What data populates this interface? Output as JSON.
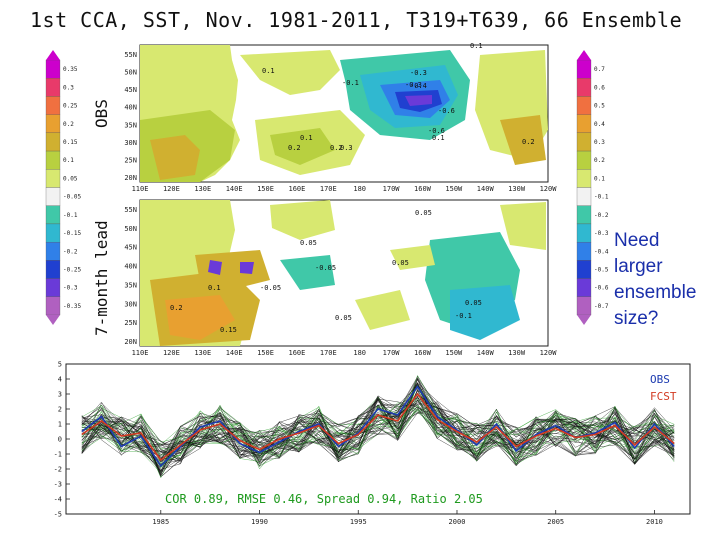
{
  "title": "1st CCA, SST, Nov. 1981-2011, T319+T639, 66 Ensemble",
  "label_obs": "OBS",
  "label_lead": "7-month lead",
  "note": [
    "Need",
    "larger",
    "ensemble",
    "size?"
  ],
  "colorbar_left": [
    "0.35",
    "0.3",
    "0.25",
    "0.2",
    "0.15",
    "0.1",
    "0.05",
    "-0.05",
    "-0.1",
    "-0.15",
    "-0.2",
    "-0.25",
    "-0.3",
    "-0.35"
  ],
  "colorbar_right": [
    "0.7",
    "0.6",
    "0.5",
    "0.4",
    "0.3",
    "0.2",
    "0.1",
    "-0.1",
    "-0.2",
    "-0.3",
    "-0.4",
    "-0.5",
    "-0.6",
    "-0.7"
  ],
  "colorbar_colors": [
    "#cc00cc",
    "#e83a6a",
    "#f07040",
    "#e8a030",
    "#d0b030",
    "#b8d040",
    "#d8e870",
    "#f2f2f2",
    "#40c8a8",
    "#30b8d0",
    "#3080e8",
    "#2040d0",
    "#6a3ad8",
    "#b060c0"
  ],
  "map_top": {
    "lat_labels": [
      "55N",
      "50N",
      "45N",
      "40N",
      "35N",
      "30N",
      "25N",
      "20N"
    ],
    "lon_labels": [
      "110E",
      "120E",
      "130E",
      "140E",
      "150E",
      "160E",
      "170E",
      "180",
      "170W",
      "160W",
      "150W",
      "140W",
      "130W",
      "120W"
    ],
    "contour_labels": [
      "0.1",
      "0.1",
      "0.2",
      "-0.1",
      "-0.3",
      "-0.3",
      "-0.4",
      "-0.6",
      "-0.6",
      "0.1",
      "0.1",
      "0.2",
      "0.3",
      "0.2"
    ]
  },
  "map_bottom": {
    "lat_labels": [
      "55N",
      "50N",
      "45N",
      "40N",
      "35N",
      "30N",
      "25N",
      "20N"
    ],
    "lon_labels": [
      "110E",
      "120E",
      "130E",
      "140E",
      "150E",
      "160E",
      "170E",
      "180",
      "170W",
      "160W",
      "150W",
      "140W",
      "130W",
      "120W"
    ],
    "contour_labels": [
      "0.05",
      "0.05",
      "0.05",
      "0.05",
      "-0.05",
      "0.15",
      "0.1",
      "-0.1",
      "0.05",
      "-0.05",
      "0.2"
    ]
  },
  "chart_data": {
    "type": "line",
    "x": [
      1981,
      1982,
      1983,
      1984,
      1985,
      1986,
      1987,
      1988,
      1989,
      1990,
      1991,
      1992,
      1993,
      1994,
      1995,
      1996,
      1997,
      1998,
      1999,
      2000,
      2001,
      2002,
      2003,
      2004,
      2005,
      2006,
      2007,
      2008,
      2009,
      2010,
      2011
    ],
    "x_ticks": [
      "1985",
      "1990",
      "1995",
      "2000",
      "2005",
      "2010"
    ],
    "y_ticks": [
      "5",
      "4",
      "3",
      "2",
      "1",
      "0",
      "-1",
      "-2",
      "-3",
      "-4",
      "-5"
    ],
    "ylim": [
      -5,
      5
    ],
    "legend": [
      "OBS",
      "FCST"
    ],
    "legend_colors": {
      "OBS": "#1d3bb0",
      "FCST": "#d23a22"
    },
    "series": [
      {
        "name": "OBS",
        "values": [
          0.5,
          1.5,
          -0.5,
          0.2,
          -1.8,
          -0.5,
          0.8,
          1.2,
          -0.3,
          -0.9,
          -0.2,
          0.5,
          1.0,
          -0.5,
          0.4,
          2.0,
          1.6,
          3.5,
          1.5,
          0.6,
          -0.4,
          1.0,
          -0.8,
          0.3,
          0.9,
          0.1,
          0.4,
          1.1,
          -0.6,
          1.0,
          -0.5
        ]
      },
      {
        "name": "FCST",
        "values": [
          0.3,
          1.2,
          0.2,
          0.4,
          -1.4,
          -0.4,
          0.6,
          1.0,
          -0.1,
          -0.7,
          0.0,
          0.4,
          0.9,
          -0.3,
          0.3,
          1.6,
          1.2,
          3.0,
          1.3,
          0.5,
          -0.2,
          0.8,
          -0.5,
          0.2,
          0.7,
          0.1,
          0.3,
          0.9,
          -0.4,
          0.8,
          -0.3
        ]
      }
    ],
    "annotation": "COR 0.89, RMSE 0.46, Spread 0.94, Ratio 2.05",
    "annotation_color": "#1f9a1f"
  }
}
